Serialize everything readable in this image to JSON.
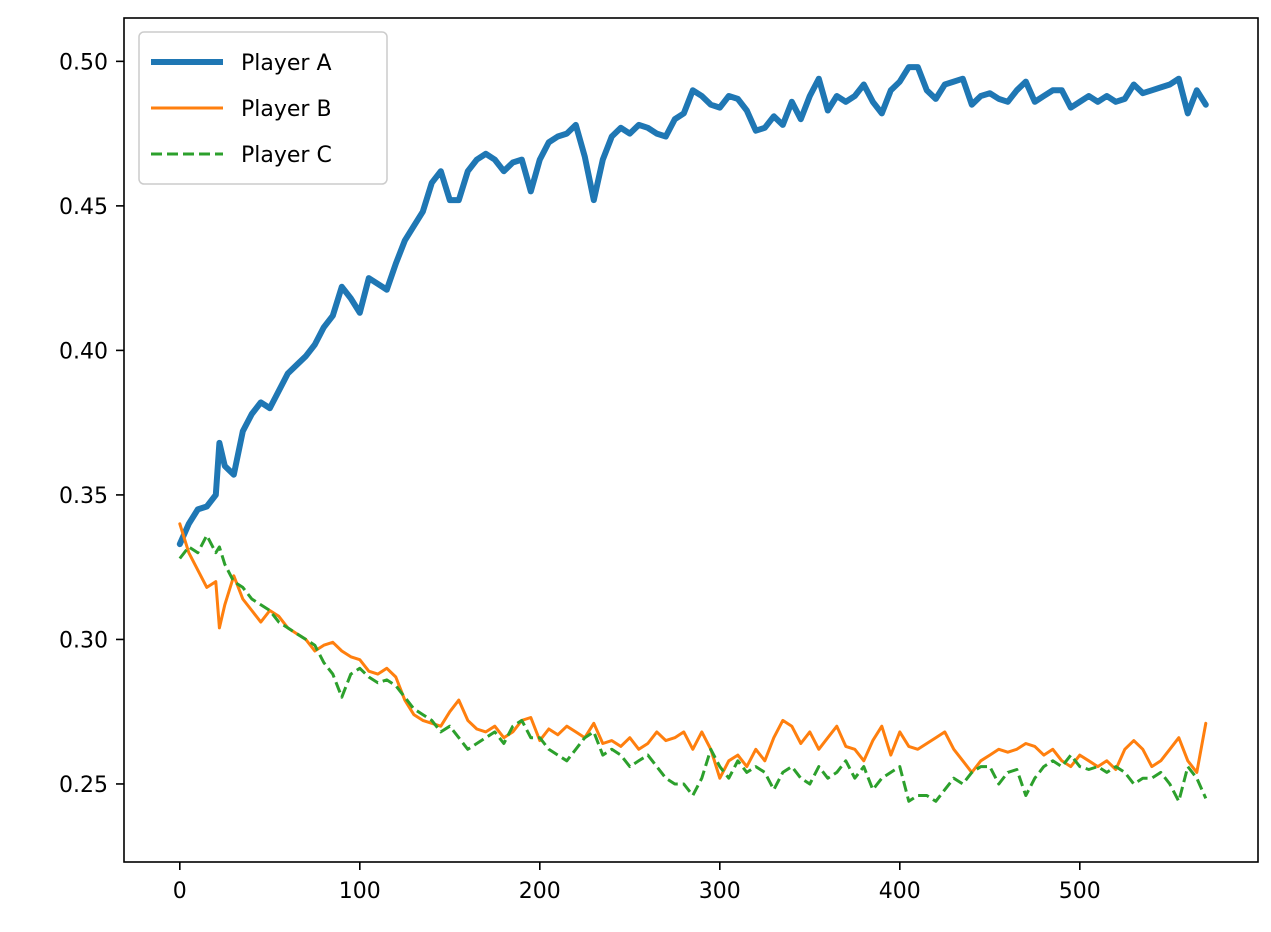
{
  "chart_data": {
    "type": "line",
    "title": "",
    "xlabel": "",
    "ylabel": "",
    "xlim": [
      -31,
      599
    ],
    "ylim": [
      0.223,
      0.515
    ],
    "xticks": [
      0,
      100,
      200,
      300,
      400,
      500
    ],
    "yticks": [
      0.25,
      0.3,
      0.35,
      0.4,
      0.45,
      0.5
    ],
    "xtick_labels": [
      "0",
      "100",
      "200",
      "300",
      "400",
      "500"
    ],
    "ytick_labels": [
      "0.25",
      "0.30",
      "0.35",
      "0.40",
      "0.45",
      "0.50"
    ],
    "grid": false,
    "legend_position": "top-left",
    "series": [
      {
        "name": "Player A",
        "color": "#1f77b4",
        "style": "solid-thick",
        "x": [
          0,
          5,
          10,
          15,
          20,
          22,
          25,
          30,
          35,
          40,
          45,
          50,
          55,
          60,
          65,
          70,
          75,
          80,
          85,
          90,
          95,
          100,
          105,
          110,
          115,
          120,
          125,
          130,
          135,
          140,
          145,
          150,
          155,
          160,
          165,
          170,
          175,
          180,
          185,
          190,
          195,
          200,
          205,
          210,
          215,
          220,
          225,
          230,
          235,
          240,
          245,
          250,
          255,
          260,
          265,
          270,
          275,
          280,
          285,
          290,
          295,
          300,
          305,
          310,
          315,
          320,
          325,
          330,
          335,
          340,
          345,
          350,
          355,
          360,
          365,
          370,
          375,
          380,
          385,
          390,
          395,
          400,
          405,
          410,
          415,
          420,
          425,
          430,
          435,
          440,
          445,
          450,
          455,
          460,
          465,
          470,
          475,
          480,
          485,
          490,
          495,
          500,
          505,
          510,
          515,
          520,
          525,
          530,
          535,
          540,
          545,
          550,
          555,
          560,
          565,
          570
        ],
        "y": [
          0.333,
          0.34,
          0.345,
          0.346,
          0.35,
          0.368,
          0.36,
          0.357,
          0.372,
          0.378,
          0.382,
          0.38,
          0.386,
          0.392,
          0.395,
          0.398,
          0.402,
          0.408,
          0.412,
          0.422,
          0.418,
          0.413,
          0.425,
          0.423,
          0.421,
          0.43,
          0.438,
          0.443,
          0.448,
          0.458,
          0.462,
          0.452,
          0.452,
          0.462,
          0.466,
          0.468,
          0.466,
          0.462,
          0.465,
          0.466,
          0.455,
          0.466,
          0.472,
          0.474,
          0.475,
          0.478,
          0.467,
          0.452,
          0.466,
          0.474,
          0.477,
          0.475,
          0.478,
          0.477,
          0.475,
          0.474,
          0.48,
          0.482,
          0.49,
          0.488,
          0.485,
          0.484,
          0.488,
          0.487,
          0.483,
          0.476,
          0.477,
          0.481,
          0.478,
          0.486,
          0.48,
          0.488,
          0.494,
          0.483,
          0.488,
          0.486,
          0.488,
          0.492,
          0.486,
          0.482,
          0.49,
          0.493,
          0.498,
          0.498,
          0.49,
          0.487,
          0.492,
          0.493,
          0.494,
          0.485,
          0.488,
          0.489,
          0.487,
          0.486,
          0.49,
          0.493,
          0.486,
          0.488,
          0.49,
          0.49,
          0.484,
          0.486,
          0.488,
          0.486,
          0.488,
          0.486,
          0.487,
          0.492,
          0.489,
          0.49,
          0.491,
          0.492,
          0.494,
          0.482,
          0.49,
          0.485
        ]
      },
      {
        "name": "Player B",
        "color": "#ff7f0e",
        "style": "solid",
        "x": [
          0,
          5,
          10,
          15,
          20,
          22,
          25,
          30,
          35,
          40,
          45,
          50,
          55,
          60,
          65,
          70,
          75,
          80,
          85,
          90,
          95,
          100,
          105,
          110,
          115,
          120,
          125,
          130,
          135,
          140,
          145,
          150,
          155,
          160,
          165,
          170,
          175,
          180,
          185,
          190,
          195,
          200,
          205,
          210,
          215,
          220,
          225,
          230,
          235,
          240,
          245,
          250,
          255,
          260,
          265,
          270,
          275,
          280,
          285,
          290,
          295,
          300,
          305,
          310,
          315,
          320,
          325,
          330,
          335,
          340,
          345,
          350,
          355,
          360,
          365,
          370,
          375,
          380,
          385,
          390,
          395,
          400,
          405,
          410,
          415,
          420,
          425,
          430,
          435,
          440,
          445,
          450,
          455,
          460,
          465,
          470,
          475,
          480,
          485,
          490,
          495,
          500,
          505,
          510,
          515,
          520,
          525,
          530,
          535,
          540,
          545,
          550,
          555,
          560,
          565,
          570
        ],
        "y": [
          0.34,
          0.33,
          0.324,
          0.318,
          0.32,
          0.304,
          0.312,
          0.322,
          0.314,
          0.31,
          0.306,
          0.31,
          0.308,
          0.304,
          0.302,
          0.3,
          0.296,
          0.298,
          0.299,
          0.296,
          0.294,
          0.293,
          0.289,
          0.288,
          0.29,
          0.287,
          0.279,
          0.274,
          0.272,
          0.271,
          0.27,
          0.275,
          0.279,
          0.272,
          0.269,
          0.268,
          0.27,
          0.266,
          0.268,
          0.272,
          0.273,
          0.265,
          0.269,
          0.267,
          0.27,
          0.268,
          0.266,
          0.271,
          0.264,
          0.265,
          0.263,
          0.266,
          0.262,
          0.264,
          0.268,
          0.265,
          0.266,
          0.268,
          0.262,
          0.268,
          0.262,
          0.252,
          0.258,
          0.26,
          0.256,
          0.262,
          0.258,
          0.266,
          0.272,
          0.27,
          0.264,
          0.268,
          0.262,
          0.266,
          0.27,
          0.263,
          0.262,
          0.258,
          0.265,
          0.27,
          0.26,
          0.268,
          0.263,
          0.262,
          0.264,
          0.266,
          0.268,
          0.262,
          0.258,
          0.254,
          0.258,
          0.26,
          0.262,
          0.261,
          0.262,
          0.264,
          0.263,
          0.26,
          0.262,
          0.258,
          0.256,
          0.26,
          0.258,
          0.256,
          0.258,
          0.255,
          0.262,
          0.265,
          0.262,
          0.256,
          0.258,
          0.262,
          0.266,
          0.258,
          0.254,
          0.271
        ]
      },
      {
        "name": "Player C",
        "color": "#2ca02c",
        "style": "dashed",
        "x": [
          0,
          5,
          10,
          15,
          20,
          22,
          25,
          30,
          35,
          40,
          45,
          50,
          55,
          60,
          65,
          70,
          75,
          80,
          85,
          90,
          95,
          100,
          105,
          110,
          115,
          120,
          125,
          130,
          135,
          140,
          145,
          150,
          155,
          160,
          165,
          170,
          175,
          180,
          185,
          190,
          195,
          200,
          205,
          210,
          215,
          220,
          225,
          230,
          235,
          240,
          245,
          250,
          255,
          260,
          265,
          270,
          275,
          280,
          285,
          290,
          295,
          300,
          305,
          310,
          315,
          320,
          325,
          330,
          335,
          340,
          345,
          350,
          355,
          360,
          365,
          370,
          375,
          380,
          385,
          390,
          395,
          400,
          405,
          410,
          415,
          420,
          425,
          430,
          435,
          440,
          445,
          450,
          455,
          460,
          465,
          470,
          475,
          480,
          485,
          490,
          495,
          500,
          505,
          510,
          515,
          520,
          525,
          530,
          535,
          540,
          545,
          550,
          555,
          560,
          565,
          570
        ],
        "y": [
          0.328,
          0.332,
          0.33,
          0.336,
          0.33,
          0.332,
          0.326,
          0.32,
          0.318,
          0.314,
          0.312,
          0.31,
          0.306,
          0.304,
          0.302,
          0.3,
          0.298,
          0.292,
          0.288,
          0.28,
          0.288,
          0.29,
          0.287,
          0.285,
          0.286,
          0.284,
          0.28,
          0.276,
          0.274,
          0.272,
          0.268,
          0.27,
          0.266,
          0.262,
          0.264,
          0.266,
          0.268,
          0.264,
          0.27,
          0.272,
          0.266,
          0.266,
          0.262,
          0.26,
          0.258,
          0.262,
          0.266,
          0.268,
          0.26,
          0.262,
          0.26,
          0.256,
          0.258,
          0.26,
          0.256,
          0.252,
          0.25,
          0.25,
          0.246,
          0.252,
          0.262,
          0.256,
          0.252,
          0.258,
          0.254,
          0.256,
          0.254,
          0.248,
          0.254,
          0.256,
          0.252,
          0.25,
          0.256,
          0.252,
          0.254,
          0.258,
          0.252,
          0.256,
          0.248,
          0.252,
          0.254,
          0.256,
          0.244,
          0.246,
          0.246,
          0.244,
          0.248,
          0.252,
          0.25,
          0.254,
          0.256,
          0.256,
          0.25,
          0.254,
          0.255,
          0.246,
          0.252,
          0.256,
          0.258,
          0.256,
          0.26,
          0.256,
          0.255,
          0.256,
          0.254,
          0.256,
          0.254,
          0.25,
          0.252,
          0.252,
          0.254,
          0.25,
          0.244,
          0.256,
          0.252,
          0.245
        ]
      }
    ]
  }
}
